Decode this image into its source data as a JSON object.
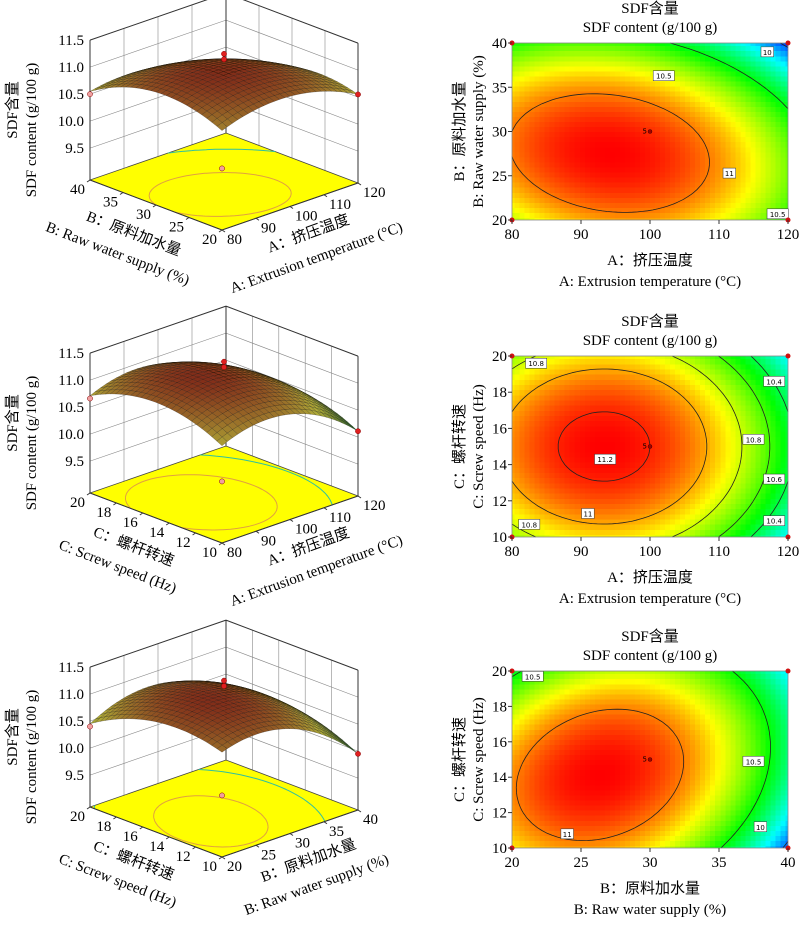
{
  "chart_data": [
    {
      "type": "surface3d",
      "zlabel_cn": "SDF含量",
      "zlabel_en": "SDF content (g/100 g)",
      "z_ticks": [
        "9.5",
        "10.0",
        "10.5",
        "11.0",
        "11.5"
      ],
      "left_axis": {
        "label_cn": "B：原料加水量",
        "label_en": "B: Raw water supply (%)",
        "ticks": [
          "20",
          "25",
          "30",
          "35",
          "40"
        ]
      },
      "right_axis": {
        "label_cn": "A：挤压温度",
        "label_en": "A: Extrusion temperature (°C)",
        "ticks": [
          "80",
          "90",
          "100",
          "110",
          "120"
        ]
      },
      "xlim": [
        80,
        120
      ],
      "ylim": [
        20,
        40
      ],
      "zlim": [
        9.5,
        11.5
      ],
      "floor_color": "#ffff00"
    },
    {
      "type": "contour",
      "title_cn": "SDF含量",
      "title_en": "SDF content (g/100 g)",
      "xlabel_cn": "A：挤压温度",
      "xlabel_en": "A: Extrusion temperature (°C)",
      "ylabel_cn": "B：原料加水量",
      "ylabel_en": "B: Raw water supply (%)",
      "x_ticks": [
        "80",
        "90",
        "100",
        "110",
        "120"
      ],
      "y_ticks": [
        "20",
        "25",
        "30",
        "35",
        "40"
      ],
      "xlim": [
        80,
        120
      ],
      "ylim": [
        20,
        40
      ],
      "contour_levels": [
        10,
        10.5,
        11
      ],
      "contour_labels": [
        "10",
        "10.5",
        "11",
        "10.5"
      ],
      "center_point": {
        "label": "5",
        "x": 100,
        "y": 30
      },
      "colormap": [
        "#0000ff",
        "#00ffff",
        "#00ff00",
        "#ffff00",
        "#ff0000"
      ]
    },
    {
      "type": "surface3d",
      "zlabel_cn": "SDF含量",
      "zlabel_en": "SDF content (g/100 g)",
      "z_ticks": [
        "9.5",
        "10.0",
        "10.5",
        "11.0",
        "11.5"
      ],
      "left_axis": {
        "label_cn": "C：螺杆转速",
        "label_en": "C: Screw speed (Hz)",
        "ticks": [
          "10",
          "12",
          "14",
          "16",
          "18",
          "20"
        ]
      },
      "right_axis": {
        "label_cn": "A：挤压温度",
        "label_en": "A: Extrusion temperature (°C)",
        "ticks": [
          "80",
          "90",
          "100",
          "110",
          "120"
        ]
      },
      "xlim": [
        80,
        120
      ],
      "ylim": [
        10,
        20
      ],
      "zlim": [
        9.5,
        11.5
      ],
      "floor_color": "#ffff00"
    },
    {
      "type": "contour",
      "title_cn": "SDF含量",
      "title_en": "SDF content (g/100 g)",
      "xlabel_cn": "A：挤压温度",
      "xlabel_en": "A: Extrusion temperature  (°C)",
      "ylabel_cn": "C：螺杆转速",
      "ylabel_en": "C: Screw speed (Hz)",
      "x_ticks": [
        "80",
        "90",
        "100",
        "110",
        "120"
      ],
      "y_ticks": [
        "10",
        "12",
        "14",
        "16",
        "18",
        "20"
      ],
      "xlim": [
        80,
        120
      ],
      "ylim": [
        10,
        20
      ],
      "contour_levels": [
        10.4,
        10.6,
        10.8,
        11,
        11.2
      ],
      "contour_labels": [
        "10.8",
        "10.4",
        "10.8",
        "11.2",
        "10.6",
        "11",
        "10.4",
        "10.8"
      ],
      "center_point": {
        "label": "5",
        "x": 100,
        "y": 15
      },
      "colormap": [
        "#0000ff",
        "#00ffff",
        "#00ff00",
        "#ffff00",
        "#ff0000"
      ]
    },
    {
      "type": "surface3d",
      "zlabel_cn": "SDF含量",
      "zlabel_en": "SDF content (g/100 g)",
      "z_ticks": [
        "9.5",
        "10.0",
        "10.5",
        "11.0",
        "11.5"
      ],
      "left_axis": {
        "label_cn": "C：螺杆转速",
        "label_en": "C: Screw speed (Hz)",
        "ticks": [
          "10",
          "12",
          "14",
          "16",
          "18",
          "20"
        ]
      },
      "right_axis": {
        "label_cn": "B：原料加水量",
        "label_en": "B: Raw water supply (%)",
        "ticks": [
          "20",
          "25",
          "30",
          "35",
          "40"
        ]
      },
      "xlim": [
        20,
        40
      ],
      "ylim": [
        10,
        20
      ],
      "zlim": [
        9.5,
        11.5
      ],
      "floor_color": "#ffff00"
    },
    {
      "type": "contour",
      "title_cn": "SDF含量",
      "title_en": "SDF content (g/100 g)",
      "xlabel_cn": "B：原料加水量",
      "xlabel_en": "B: Raw water supply (%)",
      "ylabel_cn": "C：螺杆转速",
      "ylabel_en": "C: Screw speed (Hz)",
      "x_ticks": [
        "20",
        "25",
        "30",
        "35",
        "40"
      ],
      "y_ticks": [
        "10",
        "12",
        "14",
        "16",
        "18",
        "20"
      ],
      "xlim": [
        20,
        40
      ],
      "ylim": [
        10,
        20
      ],
      "contour_levels": [
        10,
        10.5,
        11
      ],
      "contour_labels": [
        "10.5",
        "10.5",
        "11",
        "10"
      ],
      "center_point": {
        "label": "5",
        "x": 30,
        "y": 15
      },
      "colormap": [
        "#0000ff",
        "#00ffff",
        "#00ff00",
        "#ffff00",
        "#ff0000"
      ]
    }
  ]
}
